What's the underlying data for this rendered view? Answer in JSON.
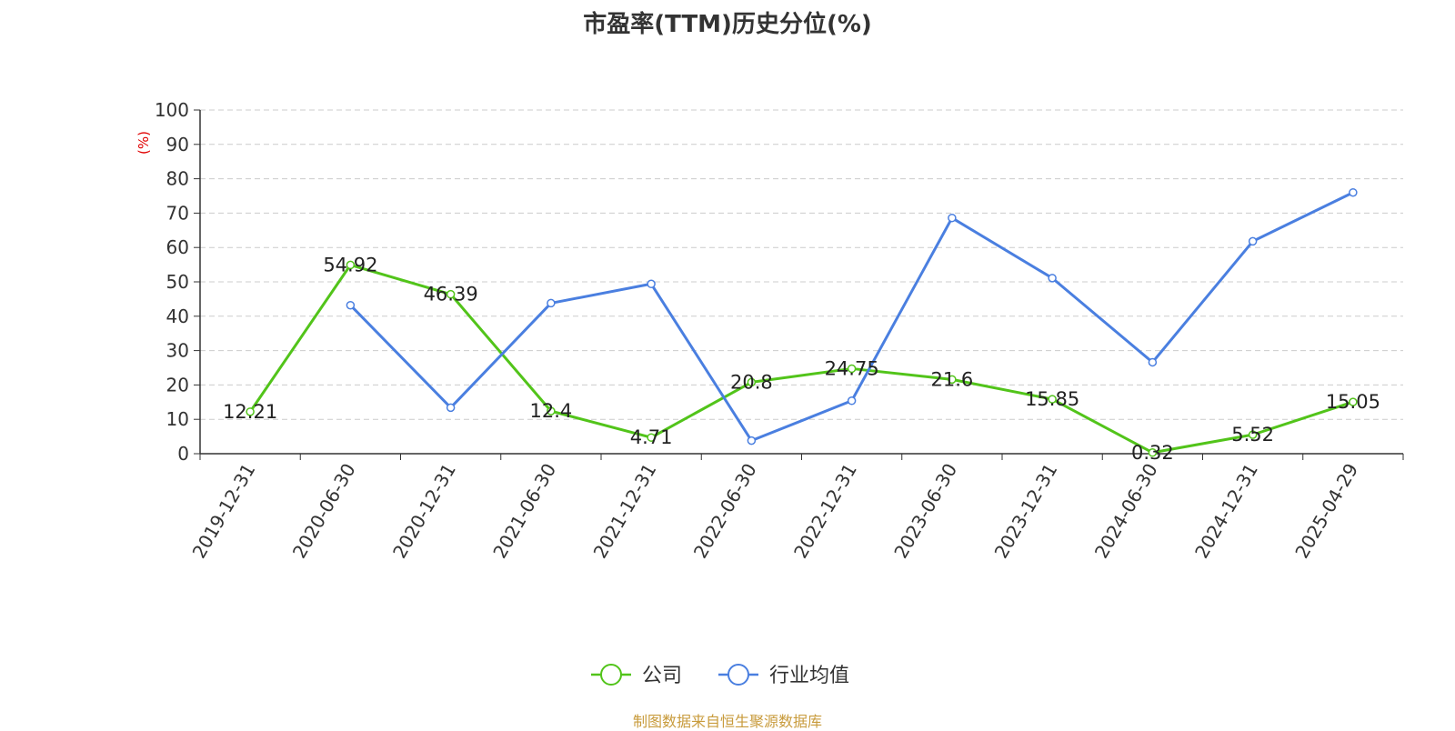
{
  "chart_data": {
    "type": "line",
    "title": "市盈率(TTM)历史分位(%)",
    "ylabel": "(%)",
    "ylim": [
      0,
      100
    ],
    "y_ticks": [
      0,
      10,
      20,
      30,
      40,
      50,
      60,
      70,
      80,
      90,
      100
    ],
    "grid": true,
    "legend_position": "bottom-center",
    "categories": [
      "2019-12-31",
      "2020-06-30",
      "2020-12-31",
      "2021-06-30",
      "2021-12-31",
      "2022-06-30",
      "2022-12-31",
      "2023-06-30",
      "2023-12-31",
      "2024-06-30",
      "2024-12-31",
      "2025-04-29"
    ],
    "series": [
      {
        "name": "公司",
        "color": "#52c41a",
        "values": [
          12.21,
          54.92,
          46.39,
          12.4,
          4.71,
          20.8,
          24.75,
          21.6,
          15.85,
          0.32,
          5.52,
          15.05
        ],
        "labels": [
          "12.21",
          "54.92",
          "46.39",
          "12.4",
          "4.71",
          "20.8",
          "24.75",
          "21.6",
          "15.85",
          "0.32",
          "5.52",
          "15.05"
        ]
      },
      {
        "name": "行业均值",
        "color": "#4a7fe0",
        "values": [
          null,
          43.2,
          13.4,
          43.8,
          49.4,
          3.8,
          15.4,
          68.6,
          51.1,
          26.6,
          61.8,
          76.0
        ],
        "labels": []
      }
    ]
  },
  "footer": {
    "source": "制图数据来自恒生聚源数据库"
  }
}
